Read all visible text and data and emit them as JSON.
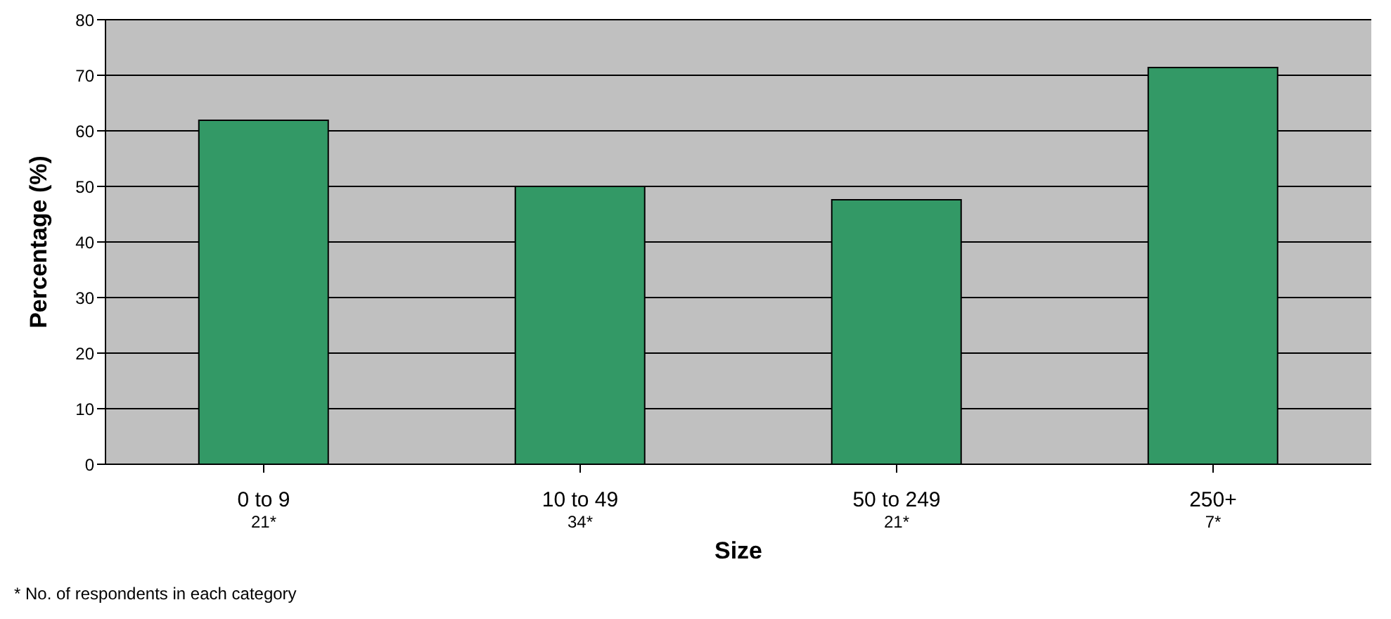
{
  "chart_data": {
    "type": "bar",
    "xlabel": "Size",
    "ylabel": "Percentage (%)",
    "categories": [
      "0 to 9",
      "10 to 49",
      "50 to 249",
      "250+"
    ],
    "values": [
      61.9,
      50,
      47.6,
      71.4
    ],
    "color": "#339966",
    "ylim": [
      0,
      80
    ],
    "yticks": [
      0,
      10,
      20,
      30,
      40,
      50,
      60,
      70,
      80
    ],
    "grid": "y",
    "annotations": [
      "21*",
      "34*",
      "21*",
      "7*",
      "* No. of respondents in each category"
    ]
  }
}
